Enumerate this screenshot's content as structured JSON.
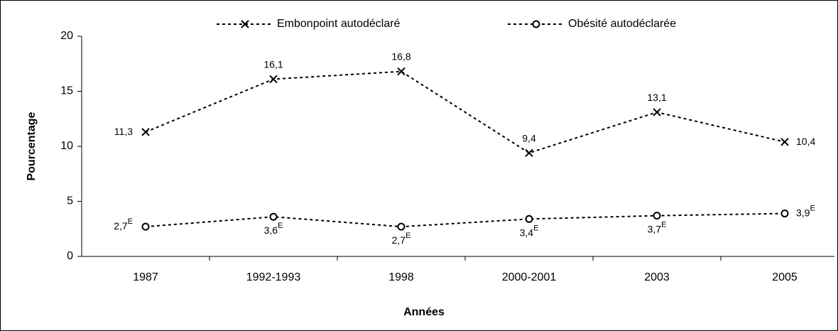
{
  "chart_data": {
    "type": "line",
    "ylabel": "Pourcentage",
    "xlabel": "Années",
    "categories": [
      "1987",
      "1992-1993",
      "1998",
      "2000-2001",
      "2003",
      "2005"
    ],
    "series": [
      {
        "name": "Embonpoint autodéclaré",
        "color": "#000000",
        "marker": "x",
        "values": [
          11.3,
          16.1,
          16.8,
          9.4,
          13.1,
          10.4
        ],
        "value_labels": [
          "11,3",
          "16,1",
          "16,8",
          "9,4",
          "13,1",
          "10,4"
        ]
      },
      {
        "name": "Obésité autodéclarée",
        "color": "#000000",
        "marker": "o",
        "values": [
          2.7,
          3.6,
          2.7,
          3.4,
          3.7,
          3.9
        ],
        "value_labels": [
          "2,7E",
          "3,6E",
          "2,7E",
          "3,4E",
          "3,7E",
          "3,9E"
        ]
      }
    ],
    "ylim": [
      0,
      20
    ],
    "yticks": [
      0,
      5,
      10,
      15,
      20
    ],
    "legend": "top",
    "grid": false
  }
}
